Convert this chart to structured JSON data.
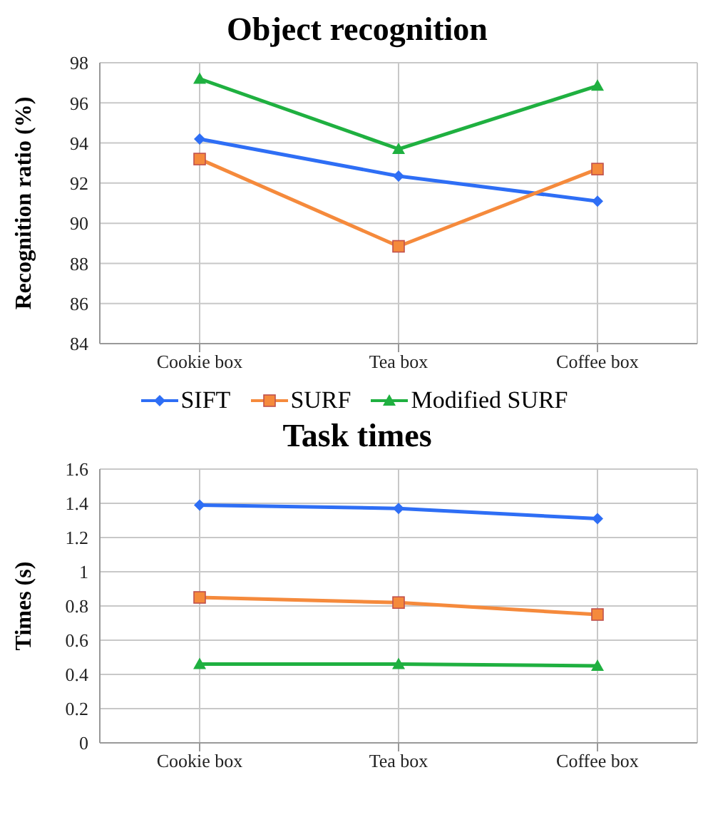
{
  "chart_data": [
    {
      "type": "line",
      "title": "Object recognition",
      "ylabel": "Recognition ratio (%)",
      "categories": [
        "Cookie box",
        "Tea box",
        "Coffee box"
      ],
      "series": [
        {
          "name": "SIFT",
          "color": "#2e6ef5",
          "marker": "diamond",
          "values": [
            94.2,
            92.35,
            91.1
          ]
        },
        {
          "name": "SURF",
          "color": "#f58a3c",
          "marker": "square",
          "values": [
            93.2,
            88.85,
            92.7
          ]
        },
        {
          "name": "Modified SURF",
          "color": "#1fb040",
          "marker": "triangle",
          "values": [
            97.2,
            93.7,
            96.85
          ]
        }
      ],
      "ylim": [
        84,
        98
      ],
      "yticks": [
        84,
        86,
        88,
        90,
        92,
        94,
        96,
        98
      ],
      "grid": true,
      "legend": "bottom"
    },
    {
      "type": "line",
      "title": "Task times",
      "ylabel": "Times (s)",
      "categories": [
        "Cookie box",
        "Tea box",
        "Coffee box"
      ],
      "series": [
        {
          "color": "#2e6ef5",
          "marker": "diamond",
          "values": [
            1.39,
            1.37,
            1.31
          ]
        },
        {
          "color": "#f58a3c",
          "marker": "square",
          "values": [
            0.85,
            0.82,
            0.75
          ]
        },
        {
          "color": "#1fb040",
          "marker": "triangle",
          "values": [
            0.46,
            0.46,
            0.45
          ]
        }
      ],
      "ylim": [
        0,
        1.6
      ],
      "yticks": [
        0,
        0.2,
        0.4,
        0.6,
        0.8,
        1,
        1.2,
        1.4,
        1.6
      ],
      "grid": true
    }
  ]
}
